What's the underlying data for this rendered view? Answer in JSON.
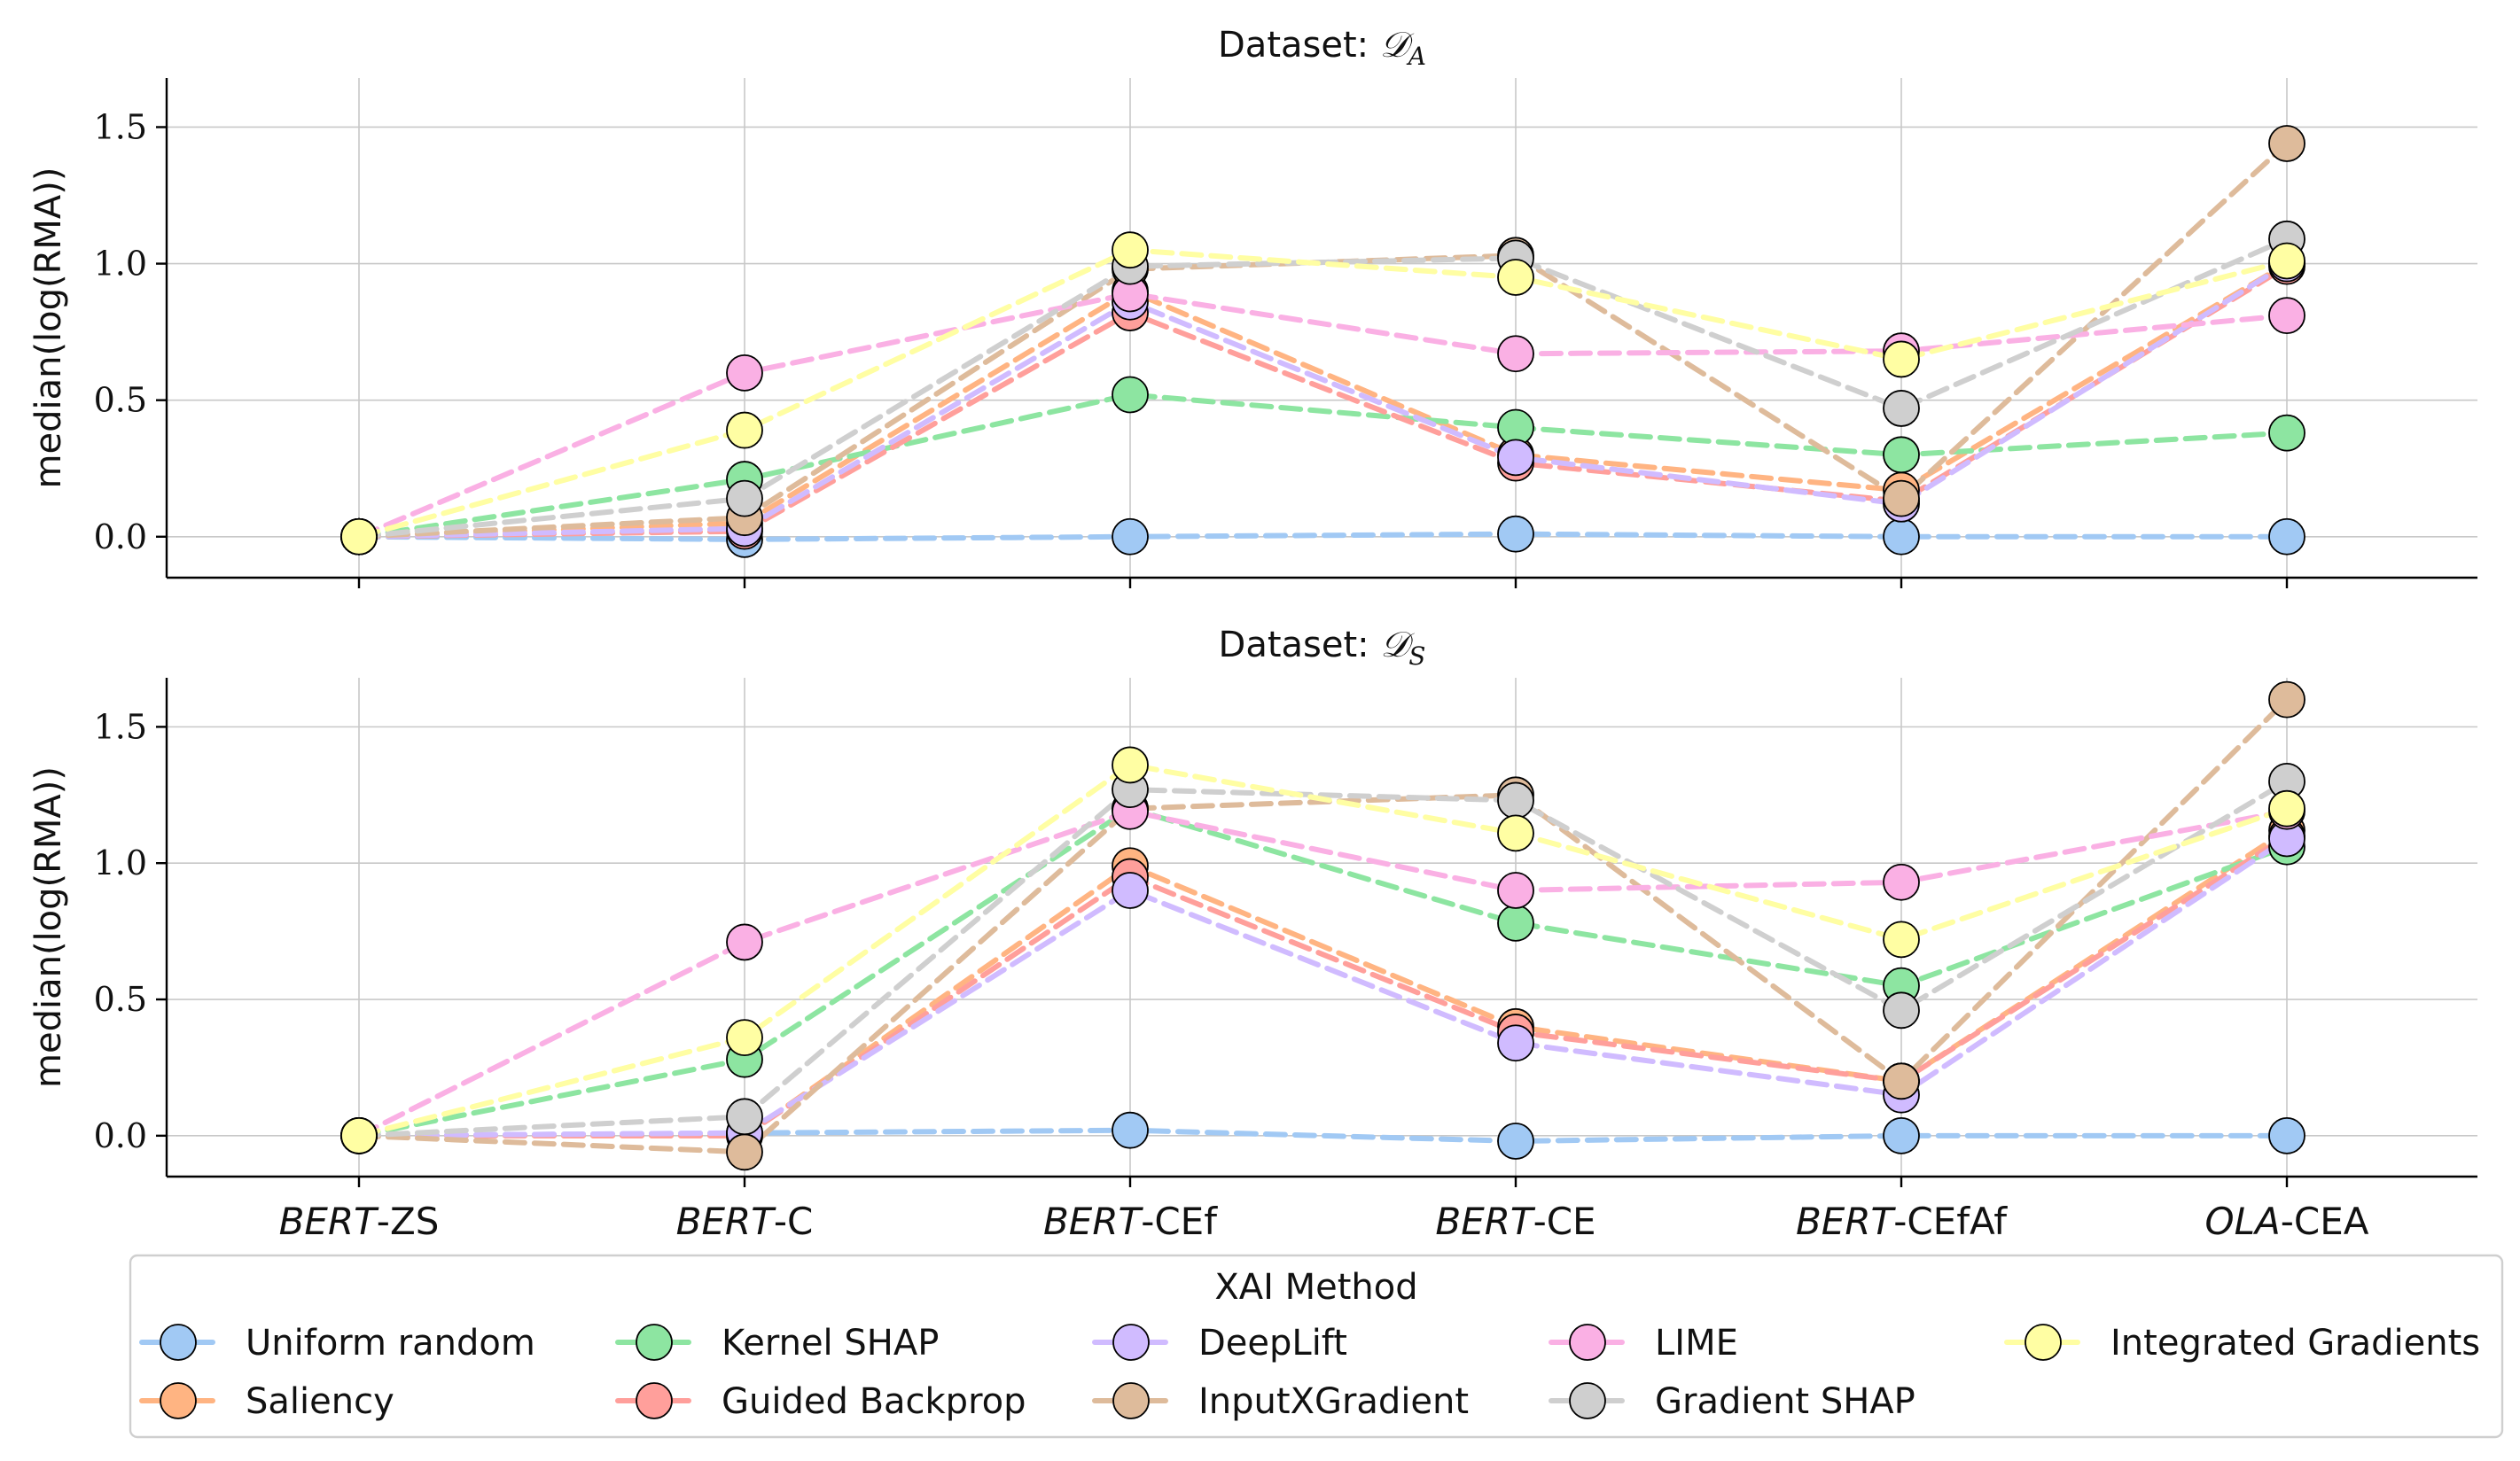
{
  "chart_data": {
    "type": "line",
    "categories": [
      {
        "italic": "BERT",
        "rest": "-ZS"
      },
      {
        "italic": "BERT",
        "rest": "-C"
      },
      {
        "italic": "BERT",
        "rest": "-CEf"
      },
      {
        "italic": "BERT",
        "rest": "-CE"
      },
      {
        "italic": "BERT",
        "rest": "-CEfAf"
      },
      {
        "italic": "OLA",
        "rest": "-CEA"
      }
    ],
    "ylim": [
      -0.15,
      1.68
    ],
    "yticks": [
      "0.0",
      "0.5",
      "1.0",
      "1.5"
    ],
    "ylabel": "median(log(RMA))",
    "legend": {
      "title": "XAI Method",
      "position": "bottom-center"
    },
    "series_meta": [
      {
        "name": "Uniform random",
        "color": "#a1c9f4"
      },
      {
        "name": "Saliency",
        "color": "#ffb482"
      },
      {
        "name": "Kernel SHAP",
        "color": "#8de5a1"
      },
      {
        "name": "Guided Backprop",
        "color": "#ff9f9b"
      },
      {
        "name": "DeepLift",
        "color": "#d0bbff"
      },
      {
        "name": "InputXGradient",
        "color": "#debb9b"
      },
      {
        "name": "LIME",
        "color": "#fab0e4"
      },
      {
        "name": "Gradient SHAP",
        "color": "#cfcfcf"
      },
      {
        "name": "Integrated Gradients",
        "color": "#fffea3"
      }
    ],
    "panels": [
      {
        "title_prefix": "Dataset: ",
        "title_symbol": "𝒟",
        "title_subscript": "A",
        "series": [
          {
            "name": "Uniform random",
            "values": [
              0.0,
              -0.01,
              0.0,
              0.01,
              0.0,
              0.0
            ]
          },
          {
            "name": "Saliency",
            "values": [
              0.0,
              0.05,
              0.9,
              0.3,
              0.17,
              1.0
            ]
          },
          {
            "name": "Kernel SHAP",
            "values": [
              0.0,
              0.21,
              0.52,
              0.4,
              0.3,
              0.38
            ]
          },
          {
            "name": "Guided Backprop",
            "values": [
              0.0,
              0.02,
              0.82,
              0.27,
              0.13,
              0.99
            ]
          },
          {
            "name": "DeepLift",
            "values": [
              0.0,
              0.03,
              0.86,
              0.29,
              0.12,
              1.0
            ]
          },
          {
            "name": "InputXGradient",
            "values": [
              0.0,
              0.07,
              0.98,
              1.03,
              0.14,
              1.44
            ]
          },
          {
            "name": "LIME",
            "values": [
              0.0,
              0.6,
              0.89,
              0.67,
              0.68,
              0.81
            ]
          },
          {
            "name": "Gradient SHAP",
            "values": [
              0.0,
              0.14,
              0.99,
              1.02,
              0.47,
              1.09
            ]
          },
          {
            "name": "Integrated Gradients",
            "values": [
              0.0,
              0.39,
              1.05,
              0.95,
              0.65,
              1.01
            ]
          }
        ]
      },
      {
        "title_prefix": "Dataset: ",
        "title_symbol": "𝒟",
        "title_subscript": "S",
        "series": [
          {
            "name": "Uniform random",
            "values": [
              0.0,
              0.01,
              0.02,
              -0.02,
              0.0,
              0.0
            ]
          },
          {
            "name": "Saliency",
            "values": [
              0.0,
              0.0,
              0.99,
              0.4,
              0.2,
              1.12
            ]
          },
          {
            "name": "Kernel SHAP",
            "values": [
              0.0,
              0.28,
              1.2,
              0.78,
              0.55,
              1.06
            ]
          },
          {
            "name": "Guided Backprop",
            "values": [
              0.0,
              0.0,
              0.95,
              0.38,
              0.2,
              1.1
            ]
          },
          {
            "name": "DeepLift",
            "values": [
              0.0,
              0.01,
              0.9,
              0.34,
              0.15,
              1.09
            ]
          },
          {
            "name": "InputXGradient",
            "values": [
              0.0,
              -0.06,
              1.2,
              1.25,
              0.2,
              1.6
            ]
          },
          {
            "name": "LIME",
            "values": [
              0.0,
              0.71,
              1.19,
              0.9,
              0.93,
              1.19
            ]
          },
          {
            "name": "Gradient SHAP",
            "values": [
              0.0,
              0.07,
              1.27,
              1.23,
              0.46,
              1.3
            ]
          },
          {
            "name": "Integrated Gradients",
            "values": [
              0.0,
              0.36,
              1.36,
              1.11,
              0.72,
              1.2
            ]
          }
        ]
      }
    ]
  }
}
